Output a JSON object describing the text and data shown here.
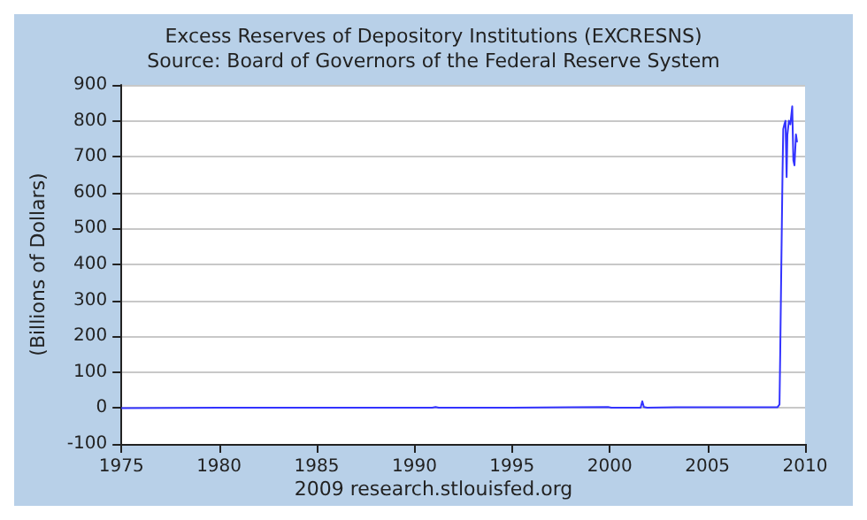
{
  "chart_data": {
    "type": "line",
    "title": "Excess Reserves of Depository Institutions (EXCRESNS)",
    "subtitle": "Source: Board of Governors of the Federal Reserve System",
    "ylabel": "(Billions of Dollars)",
    "annotations": [
      "2009 research.stlouisfed.org"
    ],
    "x": [
      "1975-01",
      "1980-01",
      "1985-01",
      "1990-12",
      "1991-02",
      "1991-04",
      "1995-01",
      "1998-01",
      "1999-12",
      "2000-02",
      "2001-08",
      "2001-09",
      "2001-10",
      "2001-12",
      "2003-06",
      "2007-01",
      "2008-06",
      "2008-08",
      "2008-09-10",
      "2008-09-24",
      "2008-10-15",
      "2008-11-05",
      "2008-11-19",
      "2008-12-10",
      "2008-12-31",
      "2009-01-21",
      "2009-02-04",
      "2009-03-04",
      "2009-04-01",
      "2009-05-06",
      "2009-05-27",
      "2009-06-17",
      "2009-07-15",
      "2009-08-05"
    ],
    "series": [
      {
        "color": "#3333ff",
        "values": [
          0,
          1,
          1,
          1,
          3,
          1,
          1,
          2,
          3,
          1,
          1,
          19,
          3,
          1,
          2,
          2,
          2,
          2,
          10,
          160,
          410,
          650,
          777,
          790,
          800,
          643,
          760,
          800,
          790,
          840,
          690,
          676,
          762,
          740
        ]
      }
    ],
    "xlim": [
      "1975",
      "2010"
    ],
    "xticks": [
      "1975",
      "1980",
      "1985",
      "1990",
      "1995",
      "2000",
      "2005",
      "2010"
    ],
    "ylim": [
      -100,
      900
    ],
    "yticks": [
      -100,
      0,
      100,
      200,
      300,
      400,
      500,
      600,
      700,
      800,
      900
    ],
    "grid": "y",
    "marker": "none",
    "line_style": "solid"
  }
}
